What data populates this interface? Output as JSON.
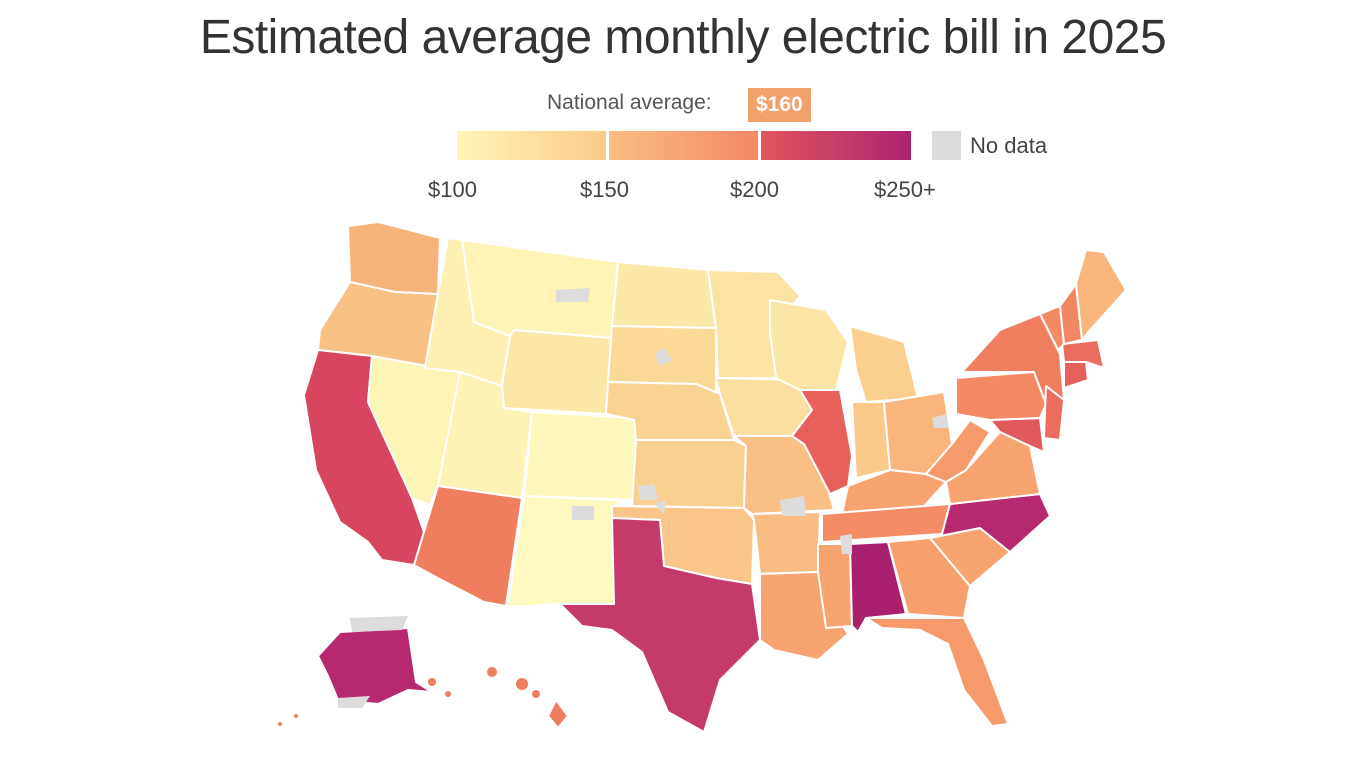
{
  "title": "Estimated average monthly electric bill in 2025",
  "national_average": {
    "label": "National average:",
    "value": "$160"
  },
  "legend": {
    "ticks": [
      "$100",
      "$150",
      "$200",
      "$250+"
    ],
    "no_data_label": "No data",
    "colors": [
      "#fdf7b7",
      "#fbc989",
      "#f79d6d",
      "#e8605a",
      "#b7286f"
    ],
    "no_data_color": "#dcdcdc"
  },
  "regions": [
    {
      "name": "Washington",
      "color": "#f7b47a"
    },
    {
      "name": "Oregon",
      "color": "#f9c184"
    },
    {
      "name": "California",
      "color": "#d8455f"
    },
    {
      "name": "Nevada",
      "color": "#fdf5b5"
    },
    {
      "name": "Idaho",
      "color": "#fdf0b0"
    },
    {
      "name": "Montana",
      "color": "#fdf4b6"
    },
    {
      "name": "Wyoming",
      "color": "#fce8a6"
    },
    {
      "name": "Utah",
      "color": "#fdf3b4"
    },
    {
      "name": "Arizona",
      "color": "#ef7e5f"
    },
    {
      "name": "Colorado",
      "color": "#fdf7bb"
    },
    {
      "name": "New Mexico",
      "color": "#fdf9bf"
    },
    {
      "name": "North Dakota",
      "color": "#fce9a8"
    },
    {
      "name": "South Dakota",
      "color": "#fbd997"
    },
    {
      "name": "Nebraska",
      "color": "#fad393"
    },
    {
      "name": "Kansas",
      "color": "#fad090"
    },
    {
      "name": "Oklahoma",
      "color": "#fbc589"
    },
    {
      "name": "Texas",
      "color": "#c43a6b"
    },
    {
      "name": "Minnesota",
      "color": "#fce3a2"
    },
    {
      "name": "Iowa",
      "color": "#fcdea0"
    },
    {
      "name": "Missouri",
      "color": "#f9bf85"
    },
    {
      "name": "Arkansas",
      "color": "#f9bd84"
    },
    {
      "name": "Louisiana",
      "color": "#f7a470"
    },
    {
      "name": "Wisconsin",
      "color": "#fce6a6"
    },
    {
      "name": "Illinois",
      "color": "#e8605a"
    },
    {
      "name": "Michigan",
      "color": "#fbcf8e"
    },
    {
      "name": "Indiana",
      "color": "#fbc98a"
    },
    {
      "name": "Ohio",
      "color": "#f9b57b"
    },
    {
      "name": "Kentucky",
      "color": "#f7a470"
    },
    {
      "name": "Tennessee",
      "color": "#f48d66"
    },
    {
      "name": "Mississippi",
      "color": "#f7a470"
    },
    {
      "name": "Alabama",
      "color": "#a8206e"
    },
    {
      "name": "Georgia",
      "color": "#f7a06d"
    },
    {
      "name": "Florida",
      "color": "#f59a6b"
    },
    {
      "name": "South Carolina",
      "color": "#f7a470"
    },
    {
      "name": "North Carolina",
      "color": "#b7286f"
    },
    {
      "name": "Virginia",
      "color": "#f7a470"
    },
    {
      "name": "West Virginia",
      "color": "#f59a6b"
    },
    {
      "name": "Maryland",
      "color": "#e05a5c"
    },
    {
      "name": "Pennsylvania",
      "color": "#f48a64"
    },
    {
      "name": "New York",
      "color": "#f07f60"
    },
    {
      "name": "New Jersey",
      "color": "#ec6d5d"
    },
    {
      "name": "Connecticut",
      "color": "#e8605a"
    },
    {
      "name": "Massachusetts",
      "color": "#ec6d5d"
    },
    {
      "name": "Vermont",
      "color": "#f48a64"
    },
    {
      "name": "New Hampshire",
      "color": "#f38764"
    },
    {
      "name": "Maine",
      "color": "#f9b57b"
    },
    {
      "name": "Alaska",
      "color": "#b7286f"
    },
    {
      "name": "Hawaii",
      "color": "#ef7e5f"
    }
  ]
}
